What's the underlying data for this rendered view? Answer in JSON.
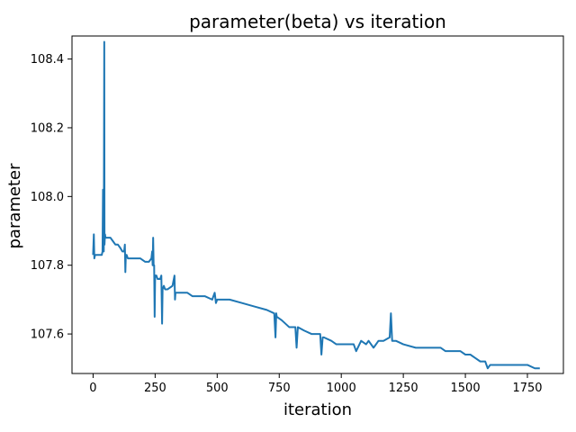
{
  "chart_data": {
    "type": "line",
    "title": "parameter(beta) vs iteration",
    "xlabel": "iteration",
    "ylabel": "parameter",
    "xlim": [
      -85,
      1895
    ],
    "ylim": [
      107.485,
      108.467
    ],
    "xticks": [
      0,
      250,
      500,
      750,
      1000,
      1250,
      1500,
      1750
    ],
    "yticks": [
      107.6,
      107.8,
      108.0,
      108.2,
      108.4
    ],
    "ytick_labels": [
      "107.6",
      "107.8",
      "108.0",
      "108.2",
      "108.4"
    ],
    "grid": false,
    "series": [
      {
        "color": "#1f77b4",
        "x": [
          0,
          3,
          5,
          8,
          12,
          20,
          30,
          35,
          38,
          40,
          42,
          43,
          45,
          46,
          48,
          50,
          55,
          60,
          70,
          80,
          90,
          100,
          110,
          118,
          120,
          125,
          128,
          130,
          132,
          135,
          140,
          150,
          170,
          190,
          210,
          225,
          235,
          238,
          240,
          242,
          244,
          246,
          248,
          250,
          252,
          253,
          255,
          260,
          270,
          275,
          278,
          280,
          285,
          290,
          300,
          320,
          328,
          330,
          332,
          340,
          360,
          380,
          400,
          420,
          450,
          480,
          490,
          495,
          500,
          550,
          600,
          650,
          700,
          730,
          735,
          738,
          740,
          760,
          790,
          815,
          820,
          825,
          850,
          880,
          915,
          920,
          925,
          930,
          960,
          980,
          1000,
          1050,
          1060,
          1080,
          1100,
          1110,
          1130,
          1150,
          1170,
          1195,
          1200,
          1205,
          1220,
          1250,
          1300,
          1350,
          1380,
          1400,
          1420,
          1450,
          1480,
          1500,
          1520,
          1540,
          1560,
          1580,
          1590,
          1600,
          1620,
          1640,
          1660,
          1680,
          1700,
          1720,
          1750,
          1780,
          1800
        ],
        "y": [
          107.83,
          107.89,
          107.82,
          107.83,
          107.83,
          107.83,
          107.83,
          107.83,
          107.84,
          108.02,
          107.84,
          107.84,
          108.45,
          107.86,
          107.89,
          107.88,
          107.88,
          107.88,
          107.88,
          107.87,
          107.86,
          107.86,
          107.85,
          107.84,
          107.84,
          107.84,
          107.86,
          107.78,
          107.83,
          107.83,
          107.82,
          107.82,
          107.82,
          107.82,
          107.81,
          107.81,
          107.82,
          107.84,
          107.8,
          107.88,
          107.8,
          107.8,
          107.65,
          107.77,
          107.77,
          107.77,
          107.77,
          107.76,
          107.76,
          107.77,
          107.63,
          107.73,
          107.74,
          107.73,
          107.73,
          107.74,
          107.77,
          107.7,
          107.72,
          107.72,
          107.72,
          107.72,
          107.71,
          107.71,
          107.71,
          107.7,
          107.72,
          107.69,
          107.7,
          107.7,
          107.69,
          107.68,
          107.67,
          107.66,
          107.59,
          107.66,
          107.65,
          107.64,
          107.62,
          107.62,
          107.56,
          107.62,
          107.61,
          107.6,
          107.6,
          107.54,
          107.59,
          107.59,
          107.58,
          107.57,
          107.57,
          107.57,
          107.55,
          107.58,
          107.57,
          107.58,
          107.56,
          107.58,
          107.58,
          107.59,
          107.66,
          107.58,
          107.58,
          107.57,
          107.56,
          107.56,
          107.56,
          107.56,
          107.55,
          107.55,
          107.55,
          107.54,
          107.54,
          107.53,
          107.52,
          107.52,
          107.5,
          107.51,
          107.51,
          107.51,
          107.51,
          107.51,
          107.51,
          107.51,
          107.51,
          107.5,
          107.5
        ]
      }
    ]
  }
}
